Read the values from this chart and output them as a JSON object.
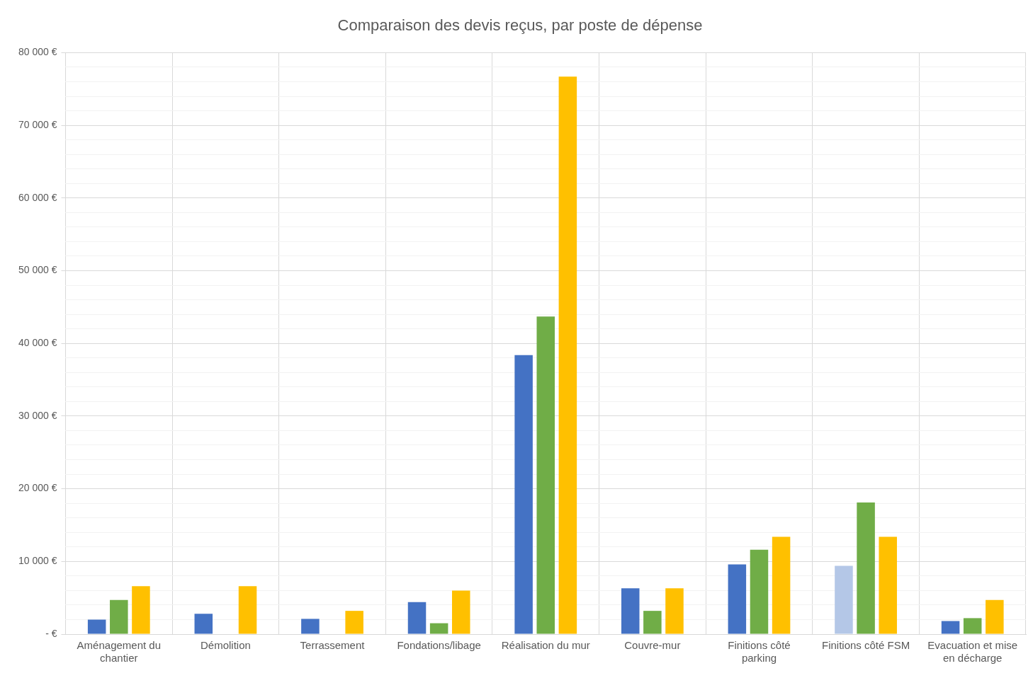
{
  "chart_data": {
    "type": "bar",
    "title": "Comparaison des devis reçus, par poste de dépense",
    "categories": [
      "Aménagement du chantier",
      "Démolition",
      "Terrassement",
      "Fondations/libage",
      "Réalisation du mur",
      "Couvre-mur",
      "Finitions côté parking",
      "Finitions côté FSM",
      "Evacuation et mise en décharge"
    ],
    "series": [
      {
        "colors": [
          "#4472c4",
          "#4472c4",
          "#4472c4",
          "#4472c4",
          "#4472c4",
          "#4472c4",
          "#4472c4",
          "#b4c7e7",
          "#4472c4"
        ],
        "values": [
          2000,
          2800,
          2100,
          4400,
          38400,
          6300,
          9600,
          9400,
          1800
        ]
      },
      {
        "color": "#70ad47",
        "values": [
          4700,
          null,
          null,
          1500,
          43700,
          3200,
          11600,
          18100,
          2200
        ]
      },
      {
        "color": "#ffc000",
        "values": [
          6600,
          6600,
          3200,
          6000,
          76700,
          6300,
          13400,
          13400,
          4700
        ]
      }
    ],
    "ylim": [
      0,
      80000
    ],
    "yticks": [
      {
        "value": 0,
        "label": "- €"
      },
      {
        "value": 2000,
        "label": null
      },
      {
        "value": 4000,
        "label": null
      },
      {
        "value": 6000,
        "label": null
      },
      {
        "value": 8000,
        "label": null
      },
      {
        "value": 10000,
        "label": "10 000 €"
      },
      {
        "value": 12000,
        "label": null
      },
      {
        "value": 14000,
        "label": null
      },
      {
        "value": 16000,
        "label": null
      },
      {
        "value": 18000,
        "label": null
      },
      {
        "value": 20000,
        "label": "20 000 €"
      },
      {
        "value": 22000,
        "label": null
      },
      {
        "value": 24000,
        "label": null
      },
      {
        "value": 26000,
        "label": null
      },
      {
        "value": 28000,
        "label": null
      },
      {
        "value": 30000,
        "label": "30 000 €"
      },
      {
        "value": 32000,
        "label": null
      },
      {
        "value": 34000,
        "label": null
      },
      {
        "value": 36000,
        "label": null
      },
      {
        "value": 38000,
        "label": null
      },
      {
        "value": 40000,
        "label": "40 000 €"
      },
      {
        "value": 42000,
        "label": null
      },
      {
        "value": 44000,
        "label": null
      },
      {
        "value": 46000,
        "label": null
      },
      {
        "value": 48000,
        "label": null
      },
      {
        "value": 50000,
        "label": "50 000 €"
      },
      {
        "value": 52000,
        "label": null
      },
      {
        "value": 54000,
        "label": null
      },
      {
        "value": 56000,
        "label": null
      },
      {
        "value": 58000,
        "label": null
      },
      {
        "value": 60000,
        "label": "60 000 €"
      },
      {
        "value": 62000,
        "label": null
      },
      {
        "value": 64000,
        "label": null
      },
      {
        "value": 66000,
        "label": null
      },
      {
        "value": 68000,
        "label": null
      },
      {
        "value": 70000,
        "label": "70 000 €"
      },
      {
        "value": 72000,
        "label": null
      },
      {
        "value": 74000,
        "label": null
      },
      {
        "value": 76000,
        "label": null
      },
      {
        "value": 78000,
        "label": null
      },
      {
        "value": 80000,
        "label": "80 000 €"
      }
    ],
    "grid": true
  }
}
